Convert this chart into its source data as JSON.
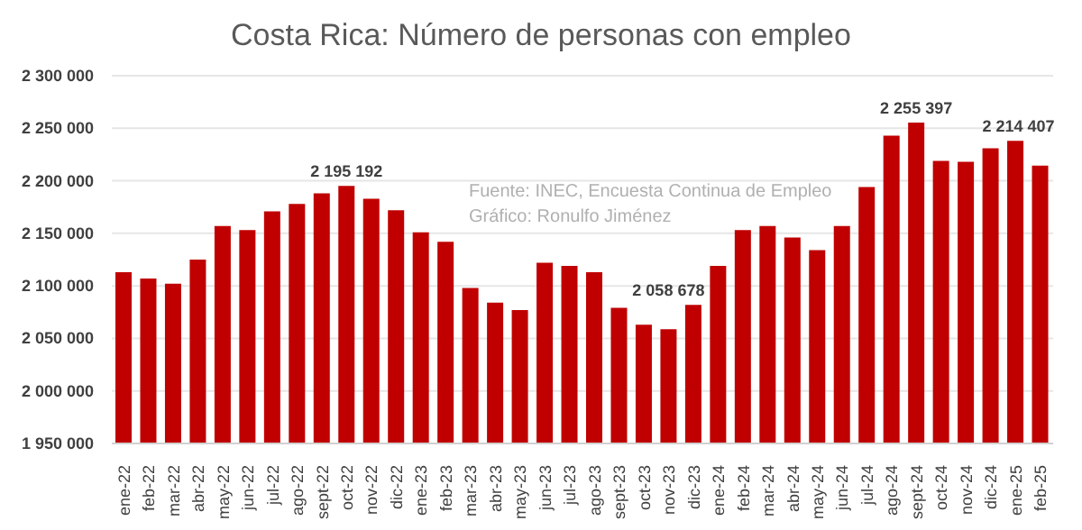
{
  "chart_data": {
    "type": "bar",
    "title": "Costa Rica: Número de personas con empleo",
    "categories": [
      "ene-22",
      "feb-22",
      "mar-22",
      "abr-22",
      "may-22",
      "jun-22",
      "jul-22",
      "ago-22",
      "sept-22",
      "oct-22",
      "nov-22",
      "dic-22",
      "ene-23",
      "feb-23",
      "mar-23",
      "abr-23",
      "may-23",
      "jun-23",
      "jul-23",
      "ago-23",
      "sept-23",
      "oct-23",
      "nov-23",
      "dic-23",
      "ene-24",
      "feb-24",
      "mar-24",
      "abr-24",
      "may-24",
      "jun-24",
      "jul-24",
      "ago-24",
      "sept-24",
      "oct-24",
      "nov-24",
      "dic-24",
      "ene-25",
      "feb-25"
    ],
    "values": [
      2113000,
      2107000,
      2102000,
      2125000,
      2157000,
      2153000,
      2171000,
      2178000,
      2188000,
      2195192,
      2183000,
      2172000,
      2151000,
      2142000,
      2098000,
      2084000,
      2077000,
      2122000,
      2119000,
      2113000,
      2079000,
      2063000,
      2058678,
      2082000,
      2119000,
      2153000,
      2157000,
      2146000,
      2134000,
      2157000,
      2194000,
      2243000,
      2255397,
      2219000,
      2218000,
      2231000,
      2238000,
      2214407
    ],
    "value_labels": [
      null,
      null,
      null,
      null,
      null,
      null,
      null,
      null,
      null,
      "2 195 192",
      null,
      null,
      null,
      null,
      null,
      null,
      null,
      null,
      null,
      null,
      null,
      null,
      "2 058 678",
      null,
      null,
      null,
      null,
      null,
      null,
      null,
      null,
      null,
      "2 255 397",
      null,
      null,
      null,
      null,
      "2 214 407"
    ],
    "color": "#c00000",
    "ylim": [
      1950000,
      2300000
    ],
    "yticks": [
      {
        "value": 1950000,
        "label": "1 950 000"
      },
      {
        "value": 2000000,
        "label": "2 000 000"
      },
      {
        "value": 2050000,
        "label": "2 050 000"
      },
      {
        "value": 2100000,
        "label": "2 100 000"
      },
      {
        "value": 2150000,
        "label": "2 150 000"
      },
      {
        "value": 2200000,
        "label": "2 200 000"
      },
      {
        "value": 2250000,
        "label": "2 250 000"
      },
      {
        "value": 2300000,
        "label": "2 300 000"
      }
    ],
    "grid": "y",
    "annotations": [
      "Fuente:  INEC, Encuesta Continua de Empleo",
      "Gráfico:  Ronulfo Jiménez"
    ]
  }
}
